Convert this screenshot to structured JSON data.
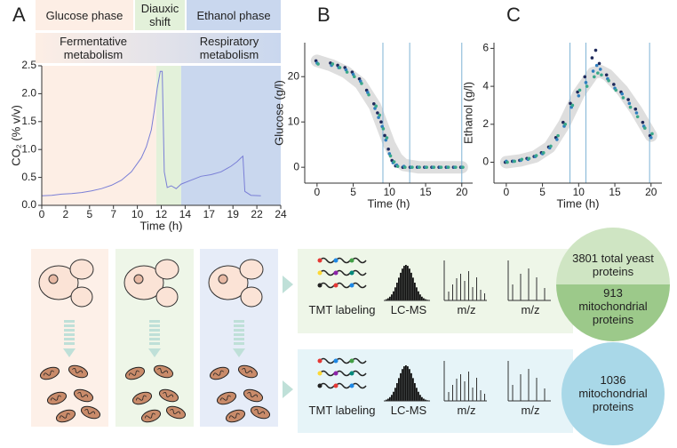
{
  "chart_data": [
    {
      "type": "line",
      "panel_label": "A",
      "ylabel": "CO₂ (% v/v)",
      "xlabel": "Time (h)",
      "phases": [
        {
          "name": "Glucose phase",
          "start": 0,
          "end": 11.5,
          "color": "#fdeee5"
        },
        {
          "name": "Diauxic shift",
          "start": 11.5,
          "end": 14,
          "color": "#e3f1da"
        },
        {
          "name": "Ethanol phase",
          "start": 14,
          "end": 24,
          "color": "#c9d7ee"
        }
      ],
      "metabolism": [
        "Fermentative metabolism",
        "Respiratory metabolism"
      ],
      "x": [
        0,
        1,
        2,
        3,
        4,
        5,
        6,
        7,
        8,
        9,
        10,
        10.5,
        11,
        11.3,
        11.6,
        11.9,
        12.1,
        12.3,
        12.6,
        13,
        13.5,
        14,
        15,
        16,
        17,
        18,
        19,
        19.6,
        20,
        20.2,
        20.4,
        21,
        22
      ],
      "values": [
        0.17,
        0.18,
        0.2,
        0.21,
        0.23,
        0.26,
        0.3,
        0.36,
        0.45,
        0.6,
        0.85,
        1.05,
        1.35,
        1.7,
        2.1,
        2.4,
        2.4,
        0.6,
        0.32,
        0.35,
        0.3,
        0.38,
        0.45,
        0.52,
        0.55,
        0.6,
        0.7,
        0.78,
        0.85,
        0.88,
        0.25,
        0.18,
        0.17
      ],
      "color": "#7a7fd6",
      "xlim": [
        0,
        24
      ],
      "xticks": [
        0,
        {
          "value": 2.4,
          "label": "2"
        },
        {
          "value": 4.8,
          "label": "5"
        },
        {
          "value": 7.2,
          "label": "7"
        },
        {
          "value": 9.6,
          "label": "10"
        },
        12,
        {
          "value": 14.4,
          "label": "14"
        },
        {
          "value": 16.8,
          "label": "17"
        },
        {
          "value": 19.2,
          "label": "19"
        },
        {
          "value": 21.6,
          "label": "22"
        },
        24
      ],
      "ylim": [
        0,
        2.5
      ],
      "yticks": [
        {
          "value": 0,
          "label": "0.0"
        },
        0.5,
        {
          "value": 1,
          "label": "1.0"
        },
        1.5,
        {
          "value": 2,
          "label": "2.0"
        },
        2.5
      ]
    },
    {
      "type": "scatter",
      "panel_label": "B",
      "ylabel": "Glucose (g/l)",
      "xlabel": "Time (h)",
      "series": [
        {
          "color": "#1f2a5c",
          "x": [
            0,
            2,
            3,
            4,
            5,
            6,
            7,
            8,
            8.5,
            9,
            9.5,
            10,
            10.5,
            11,
            12,
            13,
            14,
            15,
            16,
            17,
            18,
            19,
            20
          ],
          "values": [
            23.5,
            23,
            22.5,
            22,
            21,
            19.5,
            17,
            14,
            12,
            10,
            7,
            4,
            1.5,
            0.3,
            0,
            0,
            0,
            0,
            0,
            0,
            0,
            0,
            0
          ]
        },
        {
          "color": "#2f7fbf",
          "x": [
            0,
            2,
            3,
            4,
            5,
            6,
            7,
            8,
            8.5,
            9,
            9.5,
            10,
            10.5,
            11,
            12,
            13,
            14,
            15,
            16,
            17,
            18,
            19,
            20
          ],
          "values": [
            23,
            22.5,
            22,
            21.5,
            20.5,
            19,
            16.5,
            13,
            11,
            9,
            6,
            3,
            1,
            0.5,
            0.2,
            0,
            0,
            0,
            0,
            0,
            0,
            0,
            0
          ]
        },
        {
          "color": "#3aa88a",
          "x": [
            0,
            2,
            3,
            4,
            5,
            6,
            7,
            8,
            8.5,
            9,
            9.5,
            10,
            10.5,
            11,
            12,
            13,
            14,
            15,
            16,
            17,
            18,
            19,
            20
          ],
          "values": [
            22.8,
            22.8,
            22,
            21,
            20,
            18.5,
            16,
            13.5,
            11.5,
            8.5,
            6.5,
            2.5,
            1.2,
            0.2,
            0,
            0,
            0,
            0,
            0,
            0,
            0,
            0,
            0
          ]
        }
      ],
      "fit": {
        "color": "#b5b5b5",
        "x": [
          0,
          2,
          4,
          6,
          8,
          10,
          11,
          12,
          14,
          16,
          18,
          20
        ],
        "values": [
          23.5,
          22.5,
          21,
          18.5,
          13.5,
          5,
          2,
          0.5,
          0,
          0,
          0,
          0
        ]
      },
      "vlines": [
        9.1,
        12.8,
        20
      ],
      "vline_color": "#7fb3d5",
      "xlim": [
        -1.7,
        21.5
      ],
      "xticks": [
        0,
        5,
        10,
        15,
        20
      ],
      "ylim": [
        -3.5,
        27.5
      ],
      "yticks": [
        0,
        10,
        20
      ]
    },
    {
      "type": "scatter",
      "panel_label": "C",
      "ylabel": "Ethanol (g/l)",
      "xlabel": "Time (h)",
      "series": [
        {
          "color": "#1f2a5c",
          "x": [
            0,
            1,
            2,
            3,
            4,
            5,
            6,
            7,
            8,
            9,
            10,
            11,
            12,
            12.5,
            13,
            14,
            15,
            16,
            17,
            18,
            19,
            20
          ],
          "values": [
            0,
            0.05,
            0.1,
            0.2,
            0.3,
            0.5,
            0.8,
            1.3,
            2.1,
            3.1,
            3.7,
            4.5,
            5.5,
            5.9,
            5.2,
            4.6,
            4.1,
            3.7,
            3.3,
            2.8,
            2.1,
            1.4
          ]
        },
        {
          "color": "#2f7fbf",
          "x": [
            0,
            1,
            2,
            3,
            4,
            5,
            6,
            7,
            8,
            9,
            10,
            11,
            12,
            12.5,
            13,
            14,
            15,
            16,
            17,
            18,
            19,
            20
          ],
          "values": [
            0.05,
            0.05,
            0.1,
            0.15,
            0.3,
            0.45,
            0.75,
            1.2,
            1.9,
            2.9,
            3.5,
            4.2,
            4.8,
            5.1,
            4.9,
            4.4,
            3.9,
            3.6,
            3.1,
            2.6,
            1.9,
            1.3
          ]
        },
        {
          "color": "#3aa88a",
          "x": [
            0,
            1,
            2,
            3,
            4,
            5,
            6,
            7,
            8,
            9,
            10,
            11,
            12,
            12.5,
            13,
            14,
            15,
            16,
            17,
            18,
            19,
            20
          ],
          "values": [
            0,
            0.05,
            0.15,
            0.2,
            0.35,
            0.5,
            0.85,
            1.4,
            2,
            3,
            3.8,
            4,
            4.5,
            4.7,
            4.6,
            4.3,
            3.8,
            3.4,
            2.9,
            2.4,
            1.8,
            1.5
          ]
        }
      ],
      "fit": {
        "color": "#b5b5b5",
        "x": [
          0,
          2,
          4,
          6,
          8,
          10,
          12,
          13,
          14,
          16,
          18,
          20
        ],
        "values": [
          0,
          0.1,
          0.3,
          0.8,
          2,
          3.6,
          4.7,
          4.8,
          4.6,
          3.8,
          2.7,
          1.4
        ]
      },
      "vlines": [
        8.8,
        11,
        19.8
      ],
      "vline_color": "#7fb3d5",
      "xlim": [
        -1.7,
        21.5
      ],
      "xticks": [
        0,
        5,
        10,
        15,
        20
      ],
      "ylim": [
        -1.1,
        6.3
      ],
      "yticks": [
        0,
        2,
        4,
        6
      ]
    }
  ],
  "workflow": {
    "rows": [
      {
        "steps": [
          "TMT labeling",
          "LC-MS",
          "m/z",
          "m/z"
        ],
        "results": [
          "3801 total yeast proteins",
          "913 mitochondrial proteins"
        ]
      },
      {
        "steps": [
          "TMT labeling",
          "LC-MS",
          "m/z",
          "m/z"
        ],
        "results": [
          "1036 mitochondrial proteins"
        ]
      }
    ]
  }
}
